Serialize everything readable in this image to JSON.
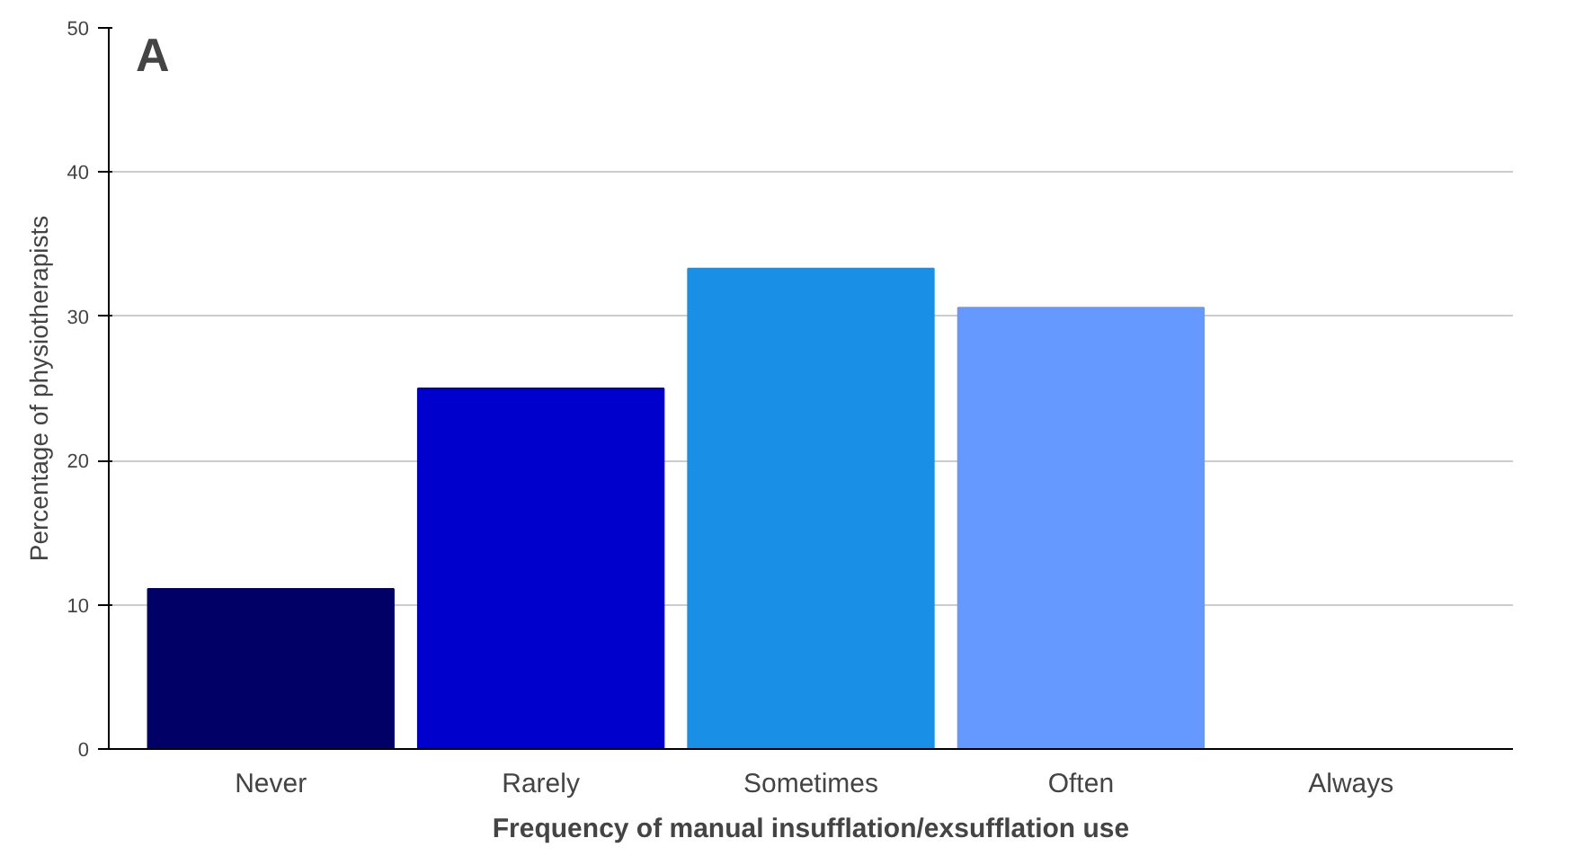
{
  "chart_data": {
    "type": "bar",
    "xlabel": "Frequency of manual insufflation/exsufflation use",
    "ylabel": "Percentage of physiotherapists",
    "categories": [
      "Never",
      "Rarely",
      "Sometimes",
      "Often",
      "Always"
    ],
    "values": [
      11.1,
      25.0,
      33.3,
      30.6,
      0
    ],
    "colors": [
      "#000066",
      "#0000cc",
      "#1a8fe6",
      "#6699ff",
      "#99bbff"
    ],
    "ylim": [
      0,
      50
    ],
    "yticks": [
      0,
      10,
      20,
      30,
      40,
      50
    ],
    "grid": "y",
    "annotations": [
      "A"
    ]
  }
}
